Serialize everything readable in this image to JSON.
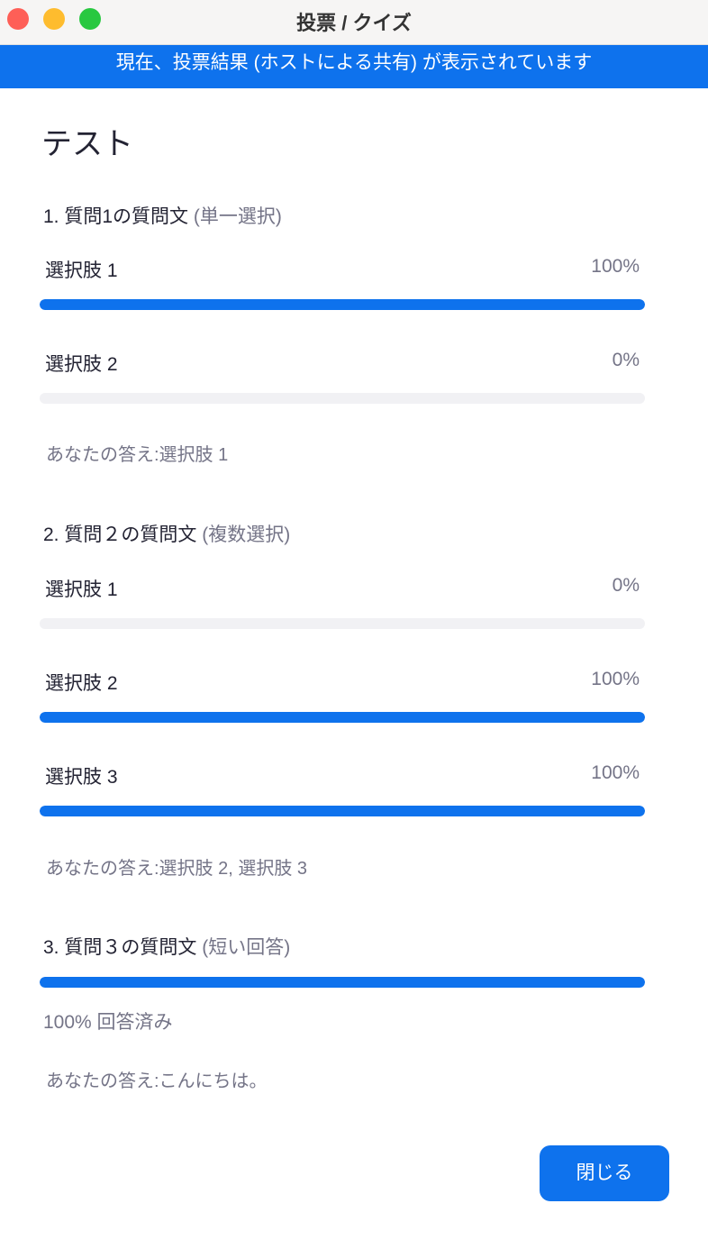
{
  "window": {
    "title": "投票 / クイズ",
    "traffic_lights": {
      "close": "#fe5f57",
      "minimize": "#febc2e",
      "zoom": "#28c840"
    }
  },
  "banner": {
    "text": "現在、投票結果 (ホストによる共有) が表示されています",
    "color": "#0e72ed"
  },
  "poll": {
    "title": "テスト",
    "questions": [
      {
        "heading": "1. 質問1の質問文",
        "type": "(単一選択)",
        "options": [
          {
            "label": "選択肢 1",
            "percent_text": "100%",
            "percent": 100
          },
          {
            "label": "選択肢 2",
            "percent_text": "0%",
            "percent": 0
          }
        ],
        "your_answer": "あなたの答え:選択肢 1"
      },
      {
        "heading": "2. 質問２の質問文",
        "type": "(複数選択)",
        "options": [
          {
            "label": "選択肢 1",
            "percent_text": "0%",
            "percent": 0
          },
          {
            "label": "選択肢 2",
            "percent_text": "100%",
            "percent": 100
          },
          {
            "label": "選択肢 3",
            "percent_text": "100%",
            "percent": 100
          }
        ],
        "your_answer": "あなたの答え:選択肢 2, 選択肢 3"
      },
      {
        "heading": "3. 質問３の質問文",
        "type": "(短い回答)",
        "percent": 100,
        "answered_text": "100% 回答済み",
        "your_answer": "あなたの答え:こんにちは。"
      }
    ]
  },
  "close_button": "閉じる"
}
